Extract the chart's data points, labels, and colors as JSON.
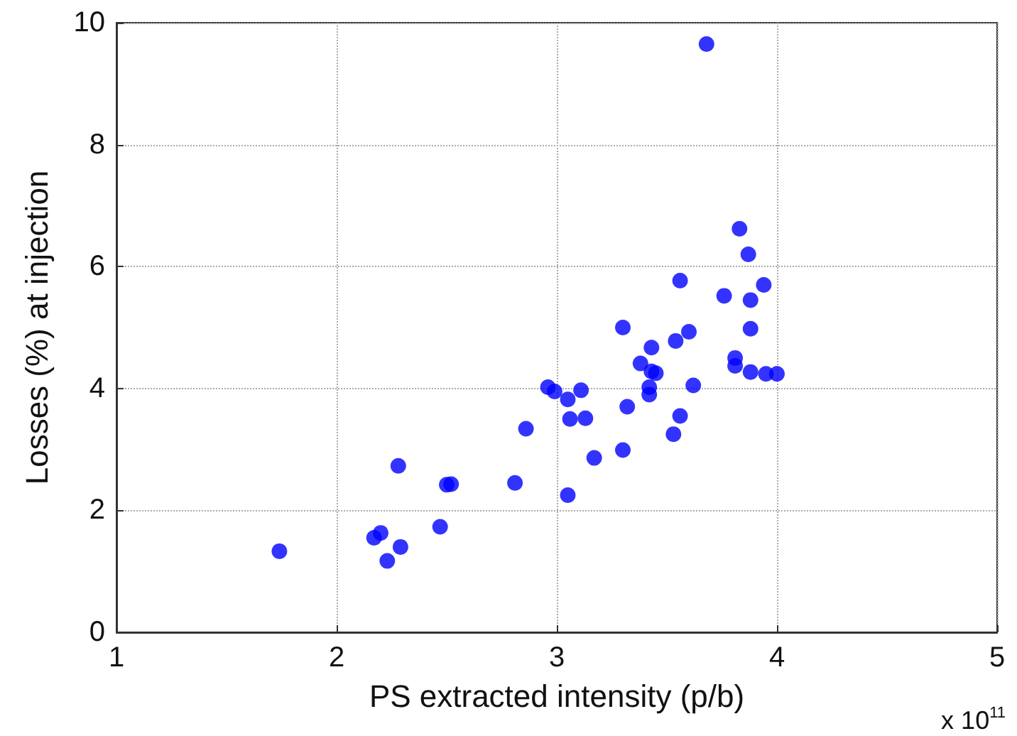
{
  "chart_data": {
    "type": "scatter",
    "xlabel": "PS extracted intensity (p/b)",
    "ylabel": "Losses (%) at injection",
    "annotations": [
      "x 10$^{11}$"
    ],
    "x": [
      1.74,
      2.17,
      2.2,
      2.23,
      2.28,
      2.29,
      2.47,
      2.5,
      2.52,
      2.81,
      2.86,
      2.96,
      2.99,
      3.05,
      3.05,
      3.06,
      3.11,
      3.13,
      3.17,
      3.3,
      3.3,
      3.32,
      3.38,
      3.42,
      3.42,
      3.43,
      3.43,
      3.45,
      3.53,
      3.54,
      3.56,
      3.56,
      3.6,
      3.62,
      3.68,
      3.76,
      3.81,
      3.81,
      3.83,
      3.87,
      3.88,
      3.88,
      3.88,
      3.94,
      3.95,
      4.0
    ],
    "series": [
      {
        "color": "#0000ff",
        "values": [
          1.33,
          1.55,
          1.63,
          1.17,
          2.73,
          1.4,
          1.73,
          2.42,
          2.43,
          2.45,
          3.34,
          4.02,
          3.95,
          3.82,
          2.25,
          3.5,
          3.97,
          3.51,
          2.86,
          5.0,
          2.99,
          3.7,
          4.41,
          4.02,
          3.9,
          4.67,
          4.28,
          4.25,
          3.25,
          4.78,
          5.77,
          3.55,
          4.93,
          4.05,
          9.65,
          5.52,
          4.5,
          4.37,
          6.62,
          6.2,
          5.45,
          4.98,
          4.27,
          5.7,
          4.24,
          4.24
        ]
      }
    ],
    "xlim": [
      1,
      5
    ],
    "xticks": [
      1,
      2,
      3,
      4,
      5
    ],
    "ylim": [
      0,
      10
    ],
    "yticks": [
      0,
      2,
      4,
      6,
      8,
      10
    ],
    "grid": true,
    "marker": "circle"
  }
}
